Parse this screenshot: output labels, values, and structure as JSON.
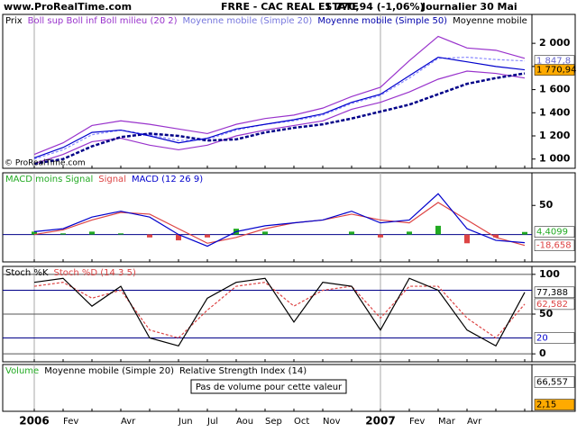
{
  "header": {
    "site": "www.ProRealTime.com",
    "title": "FRRE - CAC REAL ESTATE",
    "quote": "1 770,94 (-1,06%)",
    "period": "Journalier  30 Mai"
  },
  "copyright": "© ProRealTime.com",
  "chart_data": [
    {
      "type": "line",
      "categories": [
        "2006",
        "Fev",
        null,
        "Avr",
        null,
        "Jun",
        "Jul",
        "Aou",
        "Sep",
        "Oct",
        "Nov",
        null,
        "2007",
        "Fev",
        "Mar",
        "Avr",
        null,
        null
      ],
      "ylim": [
        920,
        2250
      ],
      "yticks": [
        {
          "value": 1000,
          "label": "1 000"
        },
        {
          "value": 1200,
          "label": "1 200"
        },
        {
          "value": 1400,
          "label": "1 400"
        },
        {
          "value": 1600,
          "label": "1 600"
        },
        {
          "value": 1800,
          "label": "1 800"
        },
        {
          "value": 2000,
          "label": "2 000"
        }
      ],
      "legend": [
        {
          "text": "Prix",
          "color": "#000000"
        },
        {
          "text": "Boll sup Boll inf Boll milieu (20 2)",
          "color": "#9933cc"
        },
        {
          "text": "Moyenne mobile (Simple 20)",
          "color": "#7777dd"
        },
        {
          "text": "Moyenne mobile (Simple 50)",
          "color": "#0000aa"
        },
        {
          "text": "Moyenne mobile",
          "color": "#000000"
        }
      ],
      "series": [
        {
          "color": "#9933cc",
          "style": "solid",
          "values": [
            1040,
            1140,
            1290,
            1330,
            1300,
            1260,
            1220,
            1300,
            1350,
            1380,
            1440,
            1540,
            1620,
            1850,
            2060,
            1960,
            1940,
            1870
          ]
        },
        {
          "color": "#9933cc",
          "style": "solid",
          "values": [
            960,
            1040,
            1150,
            1180,
            1120,
            1080,
            1120,
            1200,
            1250,
            1290,
            1330,
            1430,
            1490,
            1580,
            1690,
            1760,
            1740,
            1700
          ]
        },
        {
          "color": "#8888ff",
          "style": "dashed",
          "values": [
            1000,
            1080,
            1210,
            1250,
            1210,
            1160,
            1170,
            1250,
            1300,
            1330,
            1380,
            1480,
            1550,
            1700,
            1870,
            1880,
            1860,
            1848
          ]
        },
        {
          "color": "#000088",
          "style": "bold-dashed",
          "values": [
            960,
            1000,
            1110,
            1190,
            1220,
            1200,
            1160,
            1170,
            1230,
            1270,
            1300,
            1350,
            1410,
            1470,
            1560,
            1650,
            1700,
            1740
          ]
        },
        {
          "color": "#0000cc",
          "style": "solid",
          "values": [
            1010,
            1100,
            1230,
            1250,
            1200,
            1140,
            1180,
            1260,
            1300,
            1340,
            1390,
            1490,
            1560,
            1720,
            1880,
            1840,
            1800,
            1771
          ]
        }
      ],
      "last_labels": [
        {
          "value": 1847.8,
          "label": "1 847,8",
          "color": "#6666cc",
          "box": "#ffffff"
        },
        {
          "value": 1770.94,
          "label": "1 770,94",
          "color": "#000000",
          "box": "#ffaa00"
        }
      ]
    },
    {
      "type": "line",
      "ylim": [
        -47,
        106
      ],
      "yticks": [
        50
      ],
      "levels": [
        0
      ],
      "legend": [
        {
          "text": "MACD moins Signal",
          "color": "#22aa22"
        },
        {
          "text": "Signal",
          "color": "#dd4444"
        },
        {
          "text": "MACD (12 26 9)",
          "color": "#0000cc"
        }
      ],
      "bars": {
        "color": "#22aa22",
        "negative_color": "#dd4444",
        "values": [
          5,
          2,
          5,
          2,
          -5,
          -10,
          -5,
          10,
          5,
          0,
          0,
          5,
          -5,
          5,
          15,
          -15,
          -5,
          4.4
        ]
      },
      "series": [
        {
          "color": "#dd4444",
          "style": "solid",
          "values": [
            0,
            8,
            25,
            38,
            35,
            10,
            -15,
            -5,
            10,
            20,
            25,
            35,
            25,
            20,
            55,
            25,
            -5,
            -18.7
          ]
        },
        {
          "color": "#0000cc",
          "style": "solid",
          "values": [
            5,
            10,
            30,
            40,
            30,
            0,
            -20,
            5,
            15,
            20,
            25,
            40,
            20,
            25,
            70,
            10,
            -10,
            -14
          ]
        }
      ],
      "last_labels": [
        {
          "value": 4.4099,
          "label": "4,4099",
          "color": "#22aa22",
          "box": "#ffffff"
        },
        {
          "value": -18.658,
          "label": "-18,658",
          "color": "#dd4444",
          "box": "#ffffff"
        }
      ]
    },
    {
      "type": "line",
      "ylim": [
        -10,
        110
      ],
      "yticks": [
        0,
        50,
        100
      ],
      "levels": [
        80,
        20
      ],
      "legend": [
        {
          "text": "Stoch %K",
          "color": "#000000"
        },
        {
          "text": "Stoch %D (14 3 5)",
          "color": "#dd4444"
        }
      ],
      "series": [
        {
          "color": "#dd4444",
          "style": "dashed",
          "values": [
            85,
            90,
            70,
            80,
            30,
            20,
            55,
            85,
            90,
            60,
            80,
            85,
            45,
            85,
            85,
            45,
            20,
            62.6
          ]
        },
        {
          "color": "#000000",
          "style": "solid",
          "values": [
            90,
            95,
            60,
            85,
            20,
            10,
            70,
            90,
            95,
            40,
            90,
            85,
            30,
            95,
            80,
            30,
            10,
            77.4
          ]
        }
      ],
      "last_labels": [
        {
          "value": 77.388,
          "label": "77,388",
          "color": "#000000",
          "box": "#ffffff"
        },
        {
          "value": 62.582,
          "label": "62,582",
          "color": "#dd4444",
          "box": "#ffffff"
        },
        {
          "value": 20,
          "label": "20",
          "color": "#0000cc",
          "box": "#ffffff"
        }
      ]
    },
    {
      "type": "line",
      "ylim": [
        -17,
        117
      ],
      "legend": [
        {
          "text": "Volume",
          "color": "#22aa22"
        },
        {
          "text": "Moyenne mobile (Simple 20)",
          "color": "#000000"
        },
        {
          "text": "Relative Strength Index (14)",
          "color": "#000000"
        }
      ],
      "note": "Pas de volume pour cette valeur",
      "series": [],
      "last_labels": [
        {
          "value": 66.557,
          "label": "66,557",
          "color": "#000000",
          "box": "#ffffff"
        },
        {
          "value": 2.15,
          "label": "2,15",
          "color": "#000000",
          "box": "#ffaa00"
        }
      ]
    }
  ]
}
